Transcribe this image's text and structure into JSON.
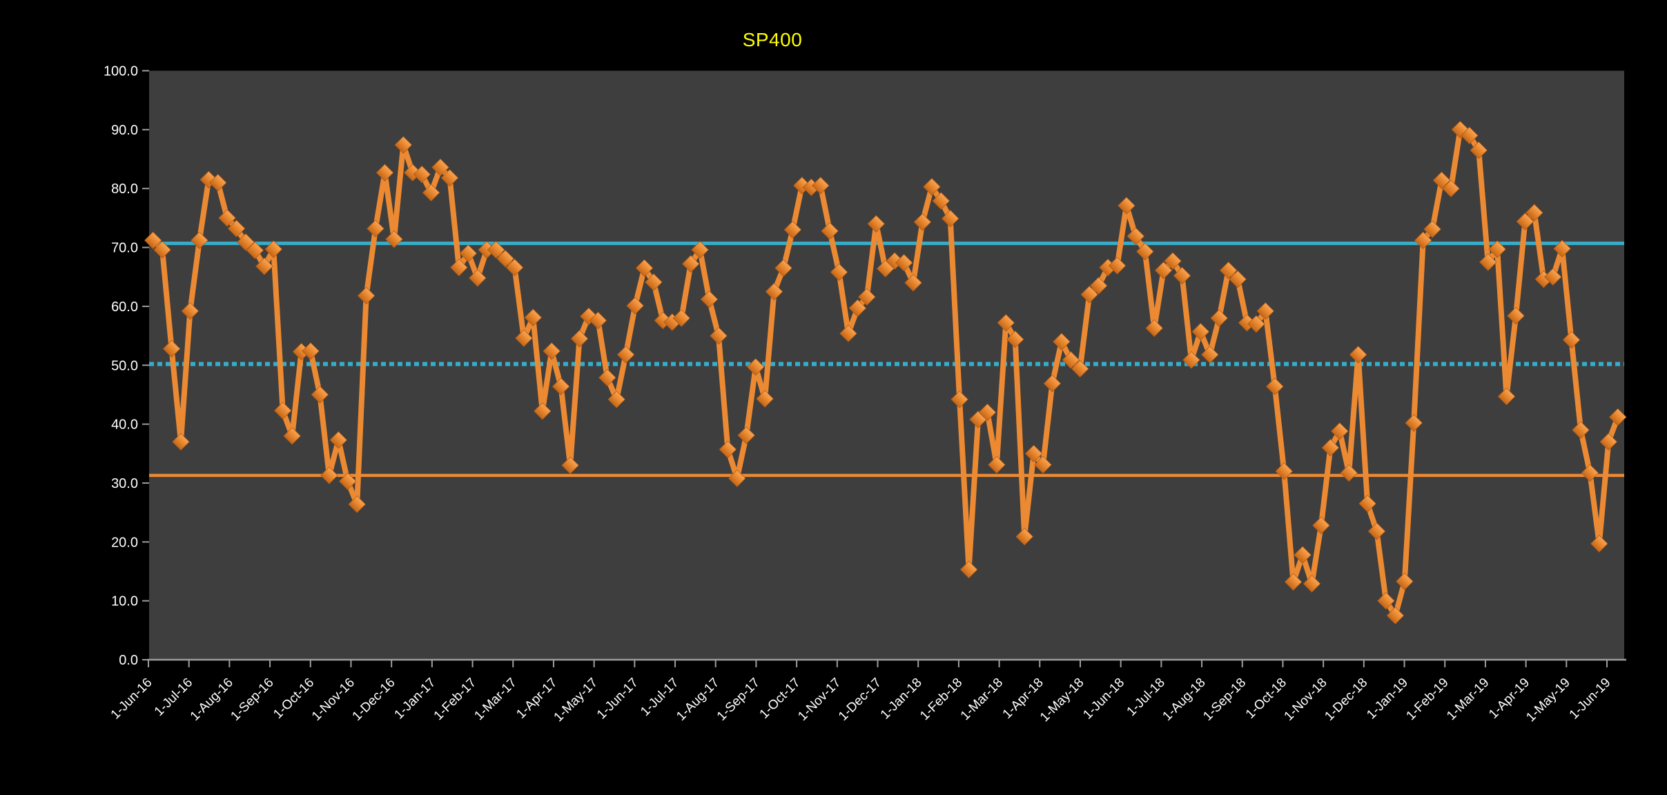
{
  "chart_data": {
    "type": "line",
    "title": "SP400",
    "title_color": "#FFFF00",
    "outer_background": "#000000",
    "plot_background": "#3E3E3E",
    "axis_text_color": "#FFFFFF",
    "axis_line_color": "#9E9E9E",
    "grid": false,
    "legend": "none",
    "ylim": [
      0,
      100
    ],
    "ytick_step": 10,
    "ytick_labels": [
      "100.0",
      "90.0",
      "80.0",
      "70.0",
      "60.0",
      "50.0",
      "40.0",
      "30.0",
      "20.0",
      "10.0",
      "0.0"
    ],
    "xtick_labels": [
      "1-Jun-16",
      "1-Jul-16",
      "1-Aug-16",
      "1-Sep-16",
      "1-Oct-16",
      "1-Nov-16",
      "1-Dec-16",
      "1-Jan-17",
      "1-Feb-17",
      "1-Mar-17",
      "1-Apr-17",
      "1-May-17",
      "1-Jun-17",
      "1-Jul-17",
      "1-Aug-17",
      "1-Sep-17",
      "1-Oct-17",
      "1-Nov-17",
      "1-Dec-17",
      "1-Jan-18",
      "1-Feb-18",
      "1-Mar-18",
      "1-Apr-18",
      "1-May-18",
      "1-Jun-18",
      "1-Jul-18",
      "1-Aug-18",
      "1-Sep-18",
      "1-Oct-18",
      "1-Nov-18",
      "1-Dec-18",
      "1-Jan-19",
      "1-Feb-19",
      "1-Mar-19",
      "1-Apr-19",
      "1-May-19",
      "1-Jun-19"
    ],
    "series": [
      {
        "name": "SP400",
        "color": "#EC8A33",
        "marker": "diamond",
        "marker_color_top": "#F9A455",
        "marker_color_bottom": "#C56619",
        "frequency": "weekly",
        "first_point": "3-Jun-16",
        "last_point": "14-Jun-19",
        "values": [
          71.2,
          69.6,
          52.8,
          37.0,
          59.2,
          71.2,
          81.5,
          81.0,
          75.0,
          73.2,
          70.9,
          69.5,
          66.8,
          69.7,
          42.3,
          38.0,
          52.3,
          52.4,
          45.0,
          31.3,
          37.3,
          30.3,
          26.4,
          61.8,
          73.2,
          82.7,
          71.4,
          87.4,
          82.7,
          82.4,
          79.3,
          83.6,
          81.8,
          66.6,
          69.0,
          64.8,
          69.6,
          69.6,
          68.1,
          66.6,
          54.6,
          58.1,
          42.2,
          52.4,
          46.4,
          33.0,
          54.5,
          58.3,
          57.6,
          47.9,
          44.2,
          51.8,
          60.1,
          66.5,
          64.1,
          57.6,
          57.3,
          58.0,
          67.2,
          69.6,
          61.2,
          55.0,
          35.7,
          30.8,
          38.1,
          49.7,
          44.3,
          62.5,
          66.5,
          73.0,
          80.5,
          80.2,
          80.5,
          72.8,
          65.8,
          55.4,
          59.7,
          61.6,
          74.0,
          66.4,
          67.7,
          67.4,
          64.0,
          74.3,
          80.3,
          77.9,
          74.9,
          44.2,
          15.3,
          40.8,
          42.0,
          33.1,
          57.2,
          54.4,
          20.9,
          35.0,
          33.1,
          46.9,
          54.0,
          50.9,
          49.4,
          62.0,
          63.5,
          66.6,
          66.9,
          77.1,
          71.9,
          69.3,
          56.3,
          66.1,
          67.7,
          65.2,
          50.9,
          55.7,
          51.8,
          58.0,
          66.1,
          64.6,
          57.2,
          57.0,
          59.2,
          46.4,
          32.0,
          13.2,
          17.8,
          12.9,
          22.8,
          36.0,
          38.8,
          31.7,
          51.8,
          26.5,
          21.8,
          10.0,
          7.5,
          13.3,
          40.2,
          71.2,
          73.1,
          81.4,
          80.0,
          90.0,
          89.0,
          86.5,
          67.5,
          69.7,
          44.7,
          58.4,
          74.4,
          75.9,
          64.6,
          65.0,
          69.8,
          54.3,
          39.0,
          31.7,
          19.7,
          37.0,
          41.2
        ]
      }
    ],
    "reference_lines": [
      {
        "name": "upper-band",
        "value": 70.7,
        "color": "#35AECB",
        "style": "solid"
      },
      {
        "name": "mid-band",
        "value": 50.2,
        "color": "#35AECB",
        "style": "dotted"
      },
      {
        "name": "lower-band",
        "value": 31.3,
        "color": "#EC8A33",
        "style": "solid"
      }
    ]
  }
}
